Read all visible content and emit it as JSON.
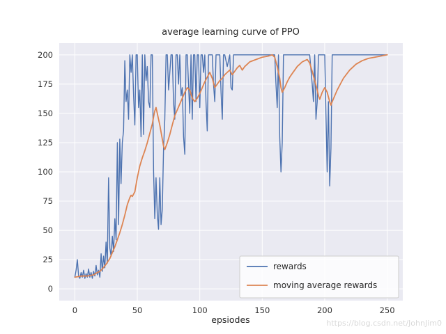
{
  "figure": {
    "title": "average learning curve of PPO",
    "xlabel": "epsiodes",
    "watermark": "https://blog.csdn.net/JohnJim0"
  },
  "colors": {
    "axes_background": "#eaeaf2",
    "grid": "#ffffff",
    "text": "#262626",
    "tick_text": "#333333",
    "watermark": "#d9d9d9",
    "legend_face": "rgba(255,255,255,0.8)",
    "legend_edge": "#cccccc",
    "rewards": "#4c72b0",
    "moving_average": "#dd8452"
  },
  "chart_data": {
    "type": "line",
    "title": "average learning curve of PPO",
    "xlabel": "epsiodes",
    "ylabel": "",
    "xlim": [
      0,
      250
    ],
    "ylim": [
      0,
      200
    ],
    "xticks": [
      0,
      50,
      100,
      150,
      200,
      250
    ],
    "yticks": [
      0,
      25,
      50,
      75,
      100,
      125,
      150,
      175,
      200
    ],
    "grid": true,
    "legend_position": "lower right",
    "series": [
      {
        "name": "rewards",
        "color": "#4c72b0",
        "points": [
          [
            0,
            10
          ],
          [
            1,
            16
          ],
          [
            2,
            25
          ],
          [
            3,
            11
          ],
          [
            4,
            9
          ],
          [
            5,
            14
          ],
          [
            6,
            10
          ],
          [
            7,
            16
          ],
          [
            8,
            9
          ],
          [
            9,
            13
          ],
          [
            10,
            10
          ],
          [
            11,
            17
          ],
          [
            12,
            10
          ],
          [
            13,
            14
          ],
          [
            14,
            9
          ],
          [
            15,
            15
          ],
          [
            16,
            11
          ],
          [
            17,
            20
          ],
          [
            18,
            12
          ],
          [
            19,
            16
          ],
          [
            20,
            10
          ],
          [
            21,
            30
          ],
          [
            22,
            15
          ],
          [
            23,
            28
          ],
          [
            24,
            18
          ],
          [
            25,
            40
          ],
          [
            26,
            22
          ],
          [
            27,
            95
          ],
          [
            28,
            35
          ],
          [
            29,
            28
          ],
          [
            30,
            45
          ],
          [
            31,
            32
          ],
          [
            32,
            60
          ],
          [
            33,
            42
          ],
          [
            34,
            125
          ],
          [
            35,
            55
          ],
          [
            36,
            128
          ],
          [
            37,
            90
          ],
          [
            38,
            125
          ],
          [
            39,
            135
          ],
          [
            40,
            195
          ],
          [
            41,
            160
          ],
          [
            42,
            170
          ],
          [
            43,
            145
          ],
          [
            44,
            200
          ],
          [
            45,
            185
          ],
          [
            46,
            200
          ],
          [
            47,
            165
          ],
          [
            48,
            140
          ],
          [
            49,
            200
          ],
          [
            50,
            200
          ],
          [
            51,
            155
          ],
          [
            52,
            170
          ],
          [
            53,
            130
          ],
          [
            54,
            200
          ],
          [
            55,
            132
          ],
          [
            56,
            200
          ],
          [
            57,
            178
          ],
          [
            58,
            190
          ],
          [
            59,
            160
          ],
          [
            60,
            155
          ],
          [
            61,
            200
          ],
          [
            62,
            200
          ],
          [
            63,
            100
          ],
          [
            64,
            60
          ],
          [
            65,
            95
          ],
          [
            66,
            64
          ],
          [
            67,
            51
          ],
          [
            68,
            95
          ],
          [
            69,
            55
          ],
          [
            70,
            68
          ],
          [
            71,
            120
          ],
          [
            72,
            145
          ],
          [
            73,
            200
          ],
          [
            74,
            200
          ],
          [
            75,
            170
          ],
          [
            76,
            185
          ],
          [
            77,
            200
          ],
          [
            78,
            200
          ],
          [
            79,
            160
          ],
          [
            80,
            145
          ],
          [
            81,
            200
          ],
          [
            82,
            200
          ],
          [
            83,
            175
          ],
          [
            84,
            200
          ],
          [
            85,
            165
          ],
          [
            86,
            172
          ],
          [
            87,
            130
          ],
          [
            88,
            115
          ],
          [
            89,
            200
          ],
          [
            90,
            200
          ],
          [
            91,
            175
          ],
          [
            92,
            150
          ],
          [
            93,
            200
          ],
          [
            94,
            145
          ],
          [
            95,
            200
          ],
          [
            96,
            200
          ],
          [
            97,
            160
          ],
          [
            98,
            200
          ],
          [
            99,
            200
          ],
          [
            100,
            155
          ],
          [
            101,
            200
          ],
          [
            102,
            200
          ],
          [
            103,
            185
          ],
          [
            104,
            200
          ],
          [
            105,
            160
          ],
          [
            106,
            135
          ],
          [
            107,
            200
          ],
          [
            108,
            200
          ],
          [
            110,
            200
          ],
          [
            111,
            175
          ],
          [
            112,
            160
          ],
          [
            113,
            200
          ],
          [
            114,
            200
          ],
          [
            116,
            200
          ],
          [
            117,
            168
          ],
          [
            118,
            145
          ],
          [
            119,
            200
          ],
          [
            120,
            200
          ],
          [
            122,
            190
          ],
          [
            124,
            200
          ],
          [
            125,
            172
          ],
          [
            126,
            170
          ],
          [
            127,
            200
          ],
          [
            130,
            200
          ],
          [
            135,
            200
          ],
          [
            140,
            200
          ],
          [
            145,
            200
          ],
          [
            150,
            200
          ],
          [
            155,
            200
          ],
          [
            158,
            200
          ],
          [
            160,
            200
          ],
          [
            161,
            175
          ],
          [
            162,
            155
          ],
          [
            163,
            200
          ],
          [
            164,
            130
          ],
          [
            165,
            100
          ],
          [
            166,
            125
          ],
          [
            167,
            200
          ],
          [
            168,
            200
          ],
          [
            170,
            200
          ],
          [
            175,
            200
          ],
          [
            180,
            200
          ],
          [
            185,
            200
          ],
          [
            188,
            200
          ],
          [
            190,
            175
          ],
          [
            191,
            160
          ],
          [
            192,
            200
          ],
          [
            193,
            145
          ],
          [
            194,
            160
          ],
          [
            195,
            200
          ],
          [
            198,
            200
          ],
          [
            200,
            200
          ],
          [
            201,
            150
          ],
          [
            202,
            100
          ],
          [
            203,
            160
          ],
          [
            204,
            88
          ],
          [
            205,
            120
          ],
          [
            206,
            200
          ],
          [
            208,
            200
          ],
          [
            210,
            200
          ],
          [
            215,
            200
          ],
          [
            220,
            200
          ],
          [
            225,
            200
          ],
          [
            230,
            200
          ],
          [
            235,
            200
          ],
          [
            240,
            200
          ],
          [
            245,
            200
          ],
          [
            250,
            200
          ]
        ]
      },
      {
        "name": "moving average rewards",
        "color": "#dd8452",
        "points": [
          [
            0,
            10
          ],
          [
            5,
            11
          ],
          [
            10,
            11
          ],
          [
            15,
            12
          ],
          [
            18,
            14
          ],
          [
            20,
            15
          ],
          [
            22,
            17
          ],
          [
            25,
            21
          ],
          [
            28,
            26
          ],
          [
            30,
            31
          ],
          [
            32,
            36
          ],
          [
            34,
            42
          ],
          [
            36,
            48
          ],
          [
            38,
            55
          ],
          [
            40,
            63
          ],
          [
            42,
            72
          ],
          [
            44,
            78
          ],
          [
            45,
            80
          ],
          [
            46,
            79
          ],
          [
            48,
            83
          ],
          [
            50,
            95
          ],
          [
            52,
            105
          ],
          [
            54,
            112
          ],
          [
            56,
            118
          ],
          [
            58,
            125
          ],
          [
            60,
            133
          ],
          [
            62,
            141
          ],
          [
            63,
            147
          ],
          [
            64,
            152
          ],
          [
            65,
            155
          ],
          [
            66,
            150
          ],
          [
            68,
            140
          ],
          [
            70,
            128
          ],
          [
            71,
            122
          ],
          [
            72,
            119
          ],
          [
            74,
            125
          ],
          [
            76,
            132
          ],
          [
            78,
            140
          ],
          [
            80,
            148
          ],
          [
            82,
            153
          ],
          [
            84,
            158
          ],
          [
            86,
            163
          ],
          [
            88,
            168
          ],
          [
            90,
            172
          ],
          [
            92,
            170
          ],
          [
            94,
            163
          ],
          [
            96,
            160
          ],
          [
            98,
            163
          ],
          [
            100,
            167
          ],
          [
            102,
            172
          ],
          [
            104,
            177
          ],
          [
            106,
            181
          ],
          [
            108,
            185
          ],
          [
            110,
            180
          ],
          [
            112,
            172
          ],
          [
            114,
            175
          ],
          [
            116,
            178
          ],
          [
            118,
            180
          ],
          [
            120,
            183
          ],
          [
            122,
            185
          ],
          [
            124,
            187
          ],
          [
            126,
            183
          ],
          [
            128,
            186
          ],
          [
            130,
            189
          ],
          [
            132,
            191
          ],
          [
            134,
            187
          ],
          [
            136,
            190
          ],
          [
            138,
            192
          ],
          [
            140,
            194
          ],
          [
            145,
            196
          ],
          [
            150,
            198
          ],
          [
            155,
            199
          ],
          [
            158,
            200
          ],
          [
            160,
            198
          ],
          [
            162,
            190
          ],
          [
            164,
            180
          ],
          [
            165,
            172
          ],
          [
            166,
            168
          ],
          [
            168,
            172
          ],
          [
            170,
            177
          ],
          [
            172,
            181
          ],
          [
            174,
            184
          ],
          [
            176,
            187
          ],
          [
            178,
            190
          ],
          [
            180,
            192
          ],
          [
            182,
            194
          ],
          [
            184,
            195
          ],
          [
            186,
            196
          ],
          [
            188,
            193
          ],
          [
            190,
            186
          ],
          [
            192,
            178
          ],
          [
            194,
            170
          ],
          [
            195,
            165
          ],
          [
            196,
            162
          ],
          [
            198,
            168
          ],
          [
            200,
            172
          ],
          [
            202,
            168
          ],
          [
            204,
            160
          ],
          [
            205,
            157
          ],
          [
            206,
            160
          ],
          [
            208,
            165
          ],
          [
            210,
            170
          ],
          [
            215,
            180
          ],
          [
            220,
            187
          ],
          [
            225,
            192
          ],
          [
            230,
            195
          ],
          [
            235,
            197
          ],
          [
            240,
            198
          ],
          [
            245,
            199
          ],
          [
            250,
            200
          ]
        ]
      }
    ]
  }
}
